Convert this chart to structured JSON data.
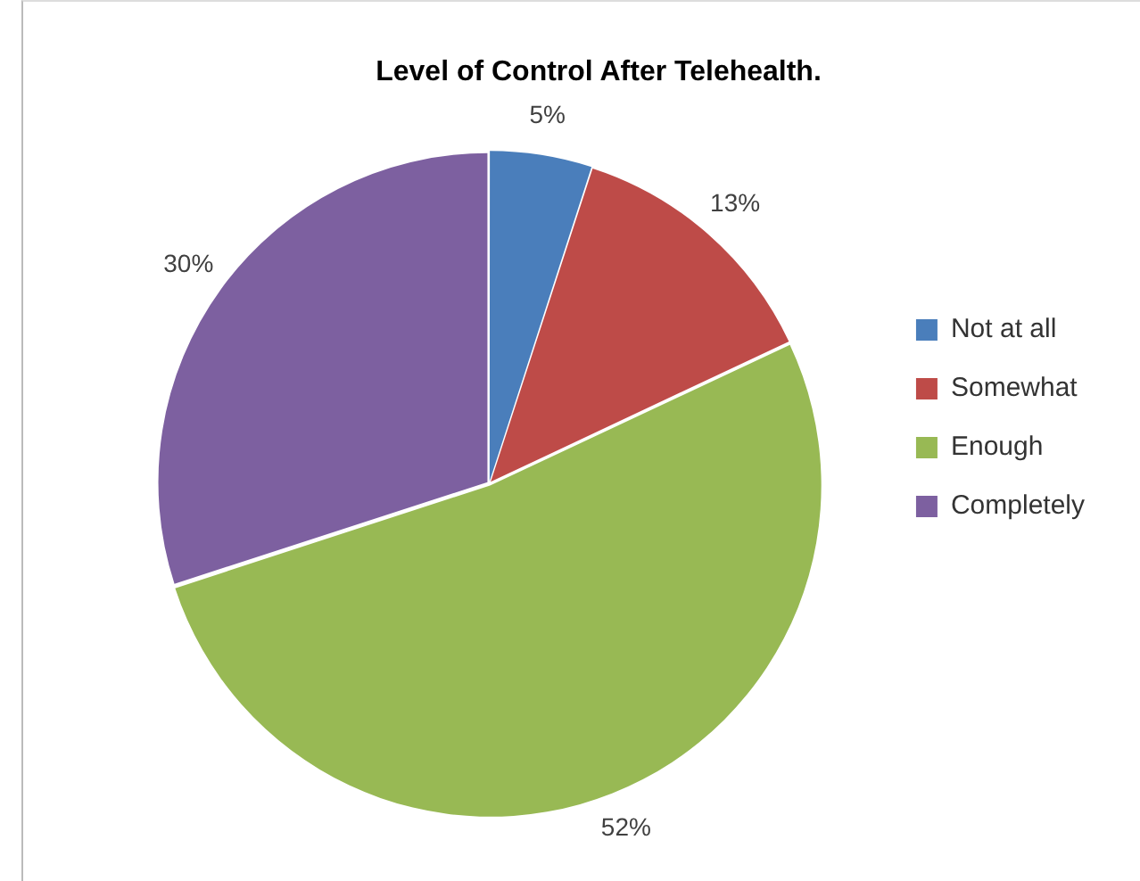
{
  "chart_data": {
    "type": "pie",
    "title": "Level of Control After Telehealth.",
    "categories": [
      "Not at all",
      "Somewhat",
      "Enough",
      "Completely"
    ],
    "values": [
      5,
      13,
      52,
      30
    ],
    "colors": [
      "#4a7ebb",
      "#be4b48",
      "#98b954",
      "#7d60a0"
    ],
    "value_labels": [
      "5%",
      "13%",
      "52%",
      "30%"
    ],
    "legend": "right"
  }
}
